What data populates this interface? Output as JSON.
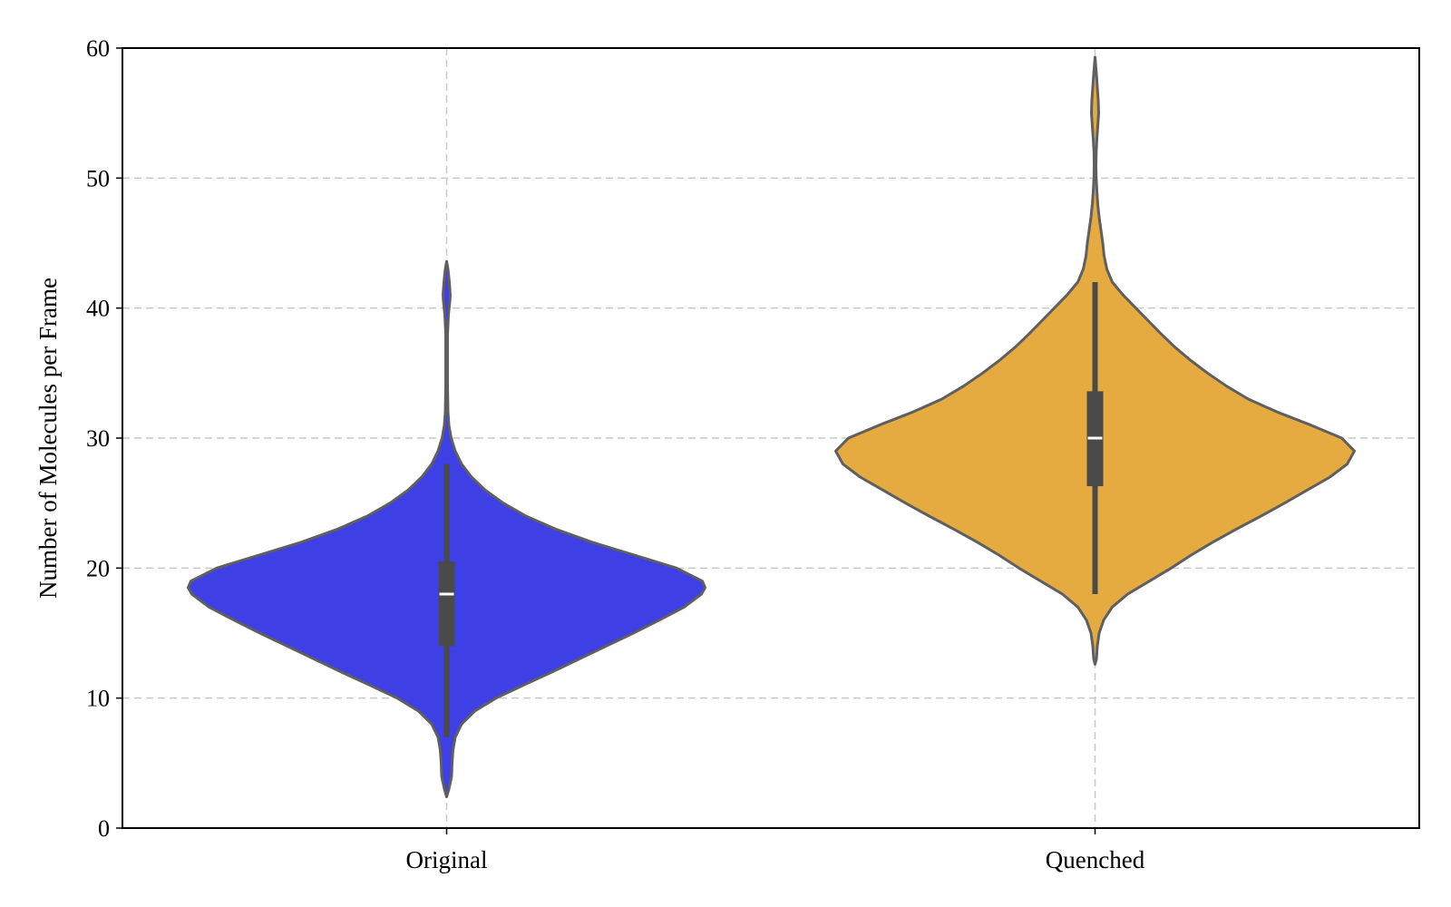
{
  "chart_data": {
    "type": "violin",
    "title": "",
    "xlabel": "",
    "ylabel": "Number of Molecules per Frame",
    "ylim": [
      0,
      60
    ],
    "yticks": [
      0,
      10,
      20,
      30,
      40,
      50,
      60
    ],
    "grid": true,
    "legend": "none",
    "categories": [
      "Original",
      "Quenched"
    ],
    "series": [
      {
        "category": "Original",
        "color": "#3f3fe6",
        "median": 18,
        "q1": 14,
        "q3": 20.5,
        "whisker_low": 7,
        "whisker_high": 28,
        "density_profile": [
          [
            2.4,
            0.0
          ],
          [
            3.0,
            0.05
          ],
          [
            4.0,
            0.11
          ],
          [
            5.0,
            0.12
          ],
          [
            6.0,
            0.14
          ],
          [
            7.0,
            0.19
          ],
          [
            8.0,
            0.33
          ],
          [
            9.0,
            0.62
          ],
          [
            10.0,
            1.09
          ],
          [
            11.0,
            1.7
          ],
          [
            12.0,
            2.32
          ],
          [
            13.0,
            2.92
          ],
          [
            14.0,
            3.52
          ],
          [
            15.0,
            4.12
          ],
          [
            16.0,
            4.69
          ],
          [
            17.0,
            5.24
          ],
          [
            18.0,
            5.62
          ],
          [
            18.5,
            5.7
          ],
          [
            19.0,
            5.64
          ],
          [
            20.0,
            5.07
          ],
          [
            21.0,
            4.14
          ],
          [
            22.0,
            3.2
          ],
          [
            23.0,
            2.4
          ],
          [
            24.0,
            1.75
          ],
          [
            25.0,
            1.25
          ],
          [
            26.0,
            0.85
          ],
          [
            27.0,
            0.55
          ],
          [
            28.0,
            0.33
          ],
          [
            29.0,
            0.19
          ],
          [
            30.0,
            0.1
          ],
          [
            31.0,
            0.05
          ],
          [
            32.0,
            0.03
          ],
          [
            34.0,
            0.02
          ],
          [
            36.0,
            0.02
          ],
          [
            38.0,
            0.02
          ],
          [
            39.5,
            0.04
          ],
          [
            40.5,
            0.07
          ],
          [
            41.0,
            0.08
          ],
          [
            42.0,
            0.06
          ],
          [
            43.0,
            0.03
          ],
          [
            43.6,
            0.0
          ]
        ]
      },
      {
        "category": "Quenched",
        "color": "#e5aa40",
        "median": 30,
        "q1": 26.3,
        "q3": 33.6,
        "whisker_low": 18,
        "whisker_high": 42,
        "density_profile": [
          [
            12.6,
            0.0
          ],
          [
            13.0,
            0.03
          ],
          [
            14.0,
            0.05
          ],
          [
            15.0,
            0.09
          ],
          [
            16.0,
            0.19
          ],
          [
            17.0,
            0.38
          ],
          [
            18.0,
            0.72
          ],
          [
            19.0,
            1.2
          ],
          [
            20.0,
            1.68
          ],
          [
            21.0,
            2.12
          ],
          [
            22.0,
            2.6
          ],
          [
            23.0,
            3.12
          ],
          [
            24.0,
            3.66
          ],
          [
            25.0,
            4.18
          ],
          [
            26.0,
            4.68
          ],
          [
            27.0,
            5.18
          ],
          [
            28.0,
            5.56
          ],
          [
            29.0,
            5.72
          ],
          [
            30.0,
            5.44
          ],
          [
            31.0,
            4.76
          ],
          [
            32.0,
            4.02
          ],
          [
            33.0,
            3.38
          ],
          [
            34.0,
            2.9
          ],
          [
            35.0,
            2.48
          ],
          [
            36.0,
            2.1
          ],
          [
            37.0,
            1.76
          ],
          [
            38.0,
            1.46
          ],
          [
            39.0,
            1.18
          ],
          [
            40.0,
            0.9
          ],
          [
            41.0,
            0.62
          ],
          [
            42.0,
            0.38
          ],
          [
            43.0,
            0.26
          ],
          [
            44.0,
            0.2
          ],
          [
            45.0,
            0.17
          ],
          [
            46.0,
            0.13
          ],
          [
            47.0,
            0.09
          ],
          [
            48.0,
            0.06
          ],
          [
            49.0,
            0.04
          ],
          [
            50.0,
            0.025
          ],
          [
            51.0,
            0.02
          ],
          [
            52.0,
            0.025
          ],
          [
            53.0,
            0.04
          ],
          [
            54.0,
            0.06
          ],
          [
            55.0,
            0.08
          ],
          [
            56.0,
            0.07
          ],
          [
            57.0,
            0.05
          ],
          [
            58.0,
            0.03
          ],
          [
            59.3,
            0.0
          ]
        ]
      }
    ]
  }
}
